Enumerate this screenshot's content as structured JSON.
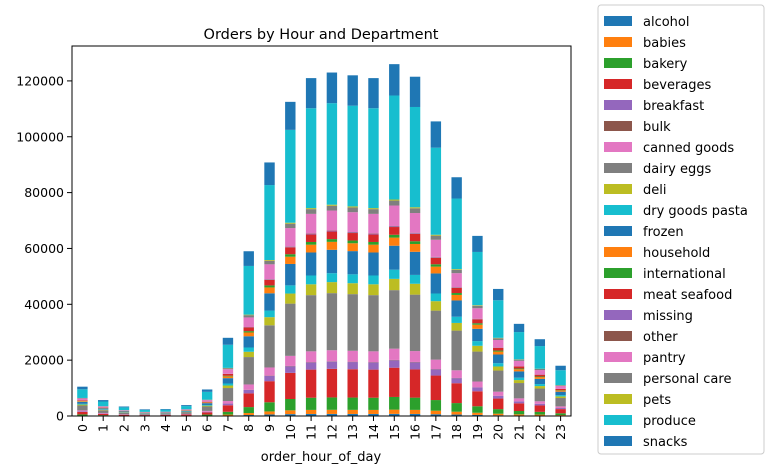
{
  "chart_data": {
    "type": "bar",
    "stacked": true,
    "title": "Orders by Hour and Department",
    "xlabel": "order_hour_of_day",
    "ylabel": "",
    "ylim": [
      0,
      132500
    ],
    "yticks": [
      0,
      20000,
      40000,
      60000,
      80000,
      100000,
      120000
    ],
    "grid": false,
    "legend_position": "outside-right",
    "categories": [
      "0",
      "1",
      "2",
      "3",
      "4",
      "5",
      "6",
      "7",
      "8",
      "9",
      "10",
      "11",
      "12",
      "13",
      "14",
      "15",
      "16",
      "17",
      "18",
      "19",
      "20",
      "21",
      "22",
      "23"
    ],
    "totals": [
      10500,
      5700,
      3400,
      2400,
      2500,
      3900,
      9500,
      28000,
      59000,
      90800,
      112500,
      121000,
      123000,
      122000,
      121000,
      126000,
      121500,
      105500,
      85500,
      64500,
      45500,
      33000,
      27500,
      18000
    ],
    "series": [
      {
        "name": "alcohol",
        "color": "#1f77b4"
      },
      {
        "name": "babies",
        "color": "#ff7f0e"
      },
      {
        "name": "bakery",
        "color": "#2ca02c"
      },
      {
        "name": "beverages",
        "color": "#d62728"
      },
      {
        "name": "breakfast",
        "color": "#9467bd"
      },
      {
        "name": "bulk",
        "color": "#8c564b"
      },
      {
        "name": "canned goods",
        "color": "#e377c2"
      },
      {
        "name": "dairy eggs",
        "color": "#7f7f7f"
      },
      {
        "name": "deli",
        "color": "#bcbd22"
      },
      {
        "name": "dry goods pasta",
        "color": "#17becf"
      },
      {
        "name": "frozen",
        "color": "#1f77b4"
      },
      {
        "name": "household",
        "color": "#ff7f0e"
      },
      {
        "name": "international",
        "color": "#2ca02c"
      },
      {
        "name": "meat seafood",
        "color": "#d62728"
      },
      {
        "name": "missing",
        "color": "#9467bd"
      },
      {
        "name": "other",
        "color": "#8c564b"
      },
      {
        "name": "pantry",
        "color": "#e377c2"
      },
      {
        "name": "personal care",
        "color": "#7f7f7f"
      },
      {
        "name": "pets",
        "color": "#bcbd22"
      },
      {
        "name": "produce",
        "color": "#17becf"
      },
      {
        "name": "snacks",
        "color": "#1f77b4"
      }
    ],
    "shares": [
      0.006,
      0.012,
      0.036,
      0.083,
      0.021,
      0.001,
      0.032,
      0.166,
      0.032,
      0.026,
      0.068,
      0.023,
      0.008,
      0.022,
      0.002,
      0.001,
      0.058,
      0.014,
      0.003,
      0.295,
      0.089
    ]
  }
}
